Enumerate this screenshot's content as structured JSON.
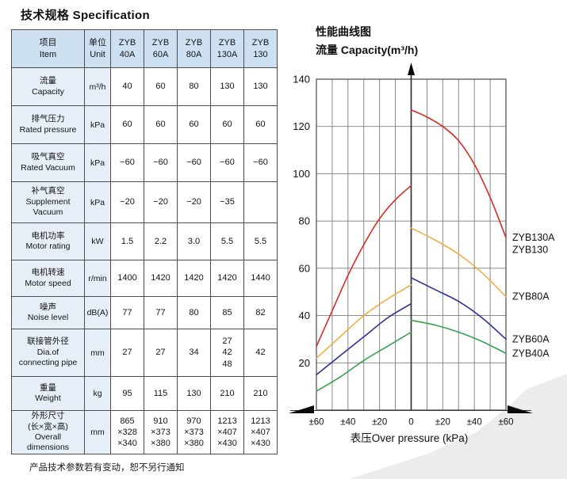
{
  "page": {
    "title": "技术规格 Specification",
    "footnote": "产品技术参数若有变动，恕不另行通知"
  },
  "table": {
    "header_bg": "#cde1f2",
    "label_bg": "#e6eef8",
    "corner": "项目\nItem",
    "unit_header": "单位\nUnit",
    "model_headers": [
      "ZYB\n40A",
      "ZYB\n60A",
      "ZYB\n80A",
      "ZYB\n130A",
      "ZYB\n130"
    ],
    "rows": [
      {
        "label": "流量\nCapacity",
        "unit": "m³/h",
        "values": [
          "40",
          "60",
          "80",
          "130",
          "130"
        ]
      },
      {
        "label": "排气压力\nRated pressure",
        "unit": "kPa",
        "values": [
          "60",
          "60",
          "60",
          "60",
          "60"
        ]
      },
      {
        "label": "吸气真空\nRated Vacuum",
        "unit": "kPa",
        "values": [
          "−60",
          "−60",
          "−60",
          "−60",
          "−60"
        ]
      },
      {
        "label": "补气真空\nSupplement\nVacuum",
        "unit": "kPa",
        "values": [
          "−20",
          "−20",
          "−20",
          "−35",
          ""
        ]
      },
      {
        "label": "电机功率\nMotor rating",
        "unit": "kW",
        "values": [
          "1.5",
          "2.2",
          "3.0",
          "5.5",
          "5.5"
        ]
      },
      {
        "label": "电机转速\nMotor speed",
        "unit": "r/min",
        "values": [
          "1400",
          "1420",
          "1420",
          "1420",
          "1440"
        ]
      },
      {
        "label": "噪声\nNoise level",
        "unit": "dB(A)",
        "values": [
          "77",
          "77",
          "80",
          "85",
          "82"
        ]
      },
      {
        "label": "联接管外径\nDia.of\nconnecting pipe",
        "unit": "mm",
        "values": [
          "27",
          "27",
          "34",
          "27\n42\n48",
          "42"
        ]
      },
      {
        "label": "重量\nWeight",
        "unit": "kg",
        "values": [
          "95",
          "115",
          "130",
          "210",
          "210"
        ]
      },
      {
        "label": "外形尺寸\n(长×宽×高)\nOverall dimensions",
        "unit": "mm",
        "values": [
          "865\n×328\n×340",
          "910\n×373\n×380",
          "970\n×373\n×380",
          "1213\n×407\n×430",
          "1213\n×407\n×430"
        ]
      }
    ]
  },
  "chart_data": {
    "type": "line",
    "title": "性能曲线图",
    "subtitle": "流量 Capacity(m³/h)",
    "xlabel": "表压Over pressure (kPa)",
    "ylabel": "流量 Capacity(m³/h)",
    "xlim": [
      -60,
      60
    ],
    "ylim": [
      0,
      140
    ],
    "grid_x_step": 10,
    "grid_y_step": 20,
    "x_tick_values": [
      -60,
      -40,
      -20,
      0,
      20,
      40,
      60
    ],
    "x_tick_labels": [
      "±60",
      "±40",
      "±20",
      "0",
      "±20",
      "±40",
      "±60"
    ],
    "y_tick_values": [
      20,
      40,
      60,
      80,
      100,
      120,
      140
    ],
    "swoosh_color": "#ececec",
    "series": [
      {
        "name": "ZYB130A/ZYB130",
        "label_lines": [
          "ZYB130A",
          "ZYB130"
        ],
        "color": "#d92b20",
        "vacuum_side": {
          "x": [
            -60,
            -50,
            -40,
            -30,
            -20,
            -10,
            0
          ],
          "y": [
            27,
            42,
            57,
            70,
            81,
            89,
            95
          ]
        },
        "pressure_side": {
          "x": [
            0,
            10,
            20,
            30,
            40,
            50,
            60
          ],
          "y": [
            127,
            124,
            120,
            114,
            104,
            90,
            73
          ]
        }
      },
      {
        "name": "ZYB80A",
        "label_lines": [
          "ZYB80A"
        ],
        "color": "#f3ad45",
        "vacuum_side": {
          "x": [
            -60,
            -45,
            -30,
            -15,
            0
          ],
          "y": [
            22,
            31,
            40,
            47,
            53
          ]
        },
        "pressure_side": {
          "x": [
            0,
            15,
            30,
            45,
            60
          ],
          "y": [
            77,
            72,
            66,
            58,
            48
          ]
        }
      },
      {
        "name": "ZYB60A",
        "label_lines": [
          "ZYB60A"
        ],
        "color": "#2d2f9a",
        "vacuum_side": {
          "x": [
            -60,
            -45,
            -30,
            -15,
            0
          ],
          "y": [
            15,
            23,
            31,
            39,
            45
          ]
        },
        "pressure_side": {
          "x": [
            0,
            15,
            30,
            45,
            60
          ],
          "y": [
            56,
            51,
            46,
            39,
            30
          ]
        }
      },
      {
        "name": "ZYB40A",
        "label_lines": [
          "ZYB40A"
        ],
        "color": "#37a24f",
        "vacuum_side": {
          "x": [
            -60,
            -45,
            -30,
            -15,
            0
          ],
          "y": [
            8,
            14,
            21,
            27,
            33
          ]
        },
        "pressure_side": {
          "x": [
            0,
            15,
            30,
            45,
            60
          ],
          "y": [
            38,
            36,
            33,
            29,
            24
          ]
        }
      }
    ]
  }
}
